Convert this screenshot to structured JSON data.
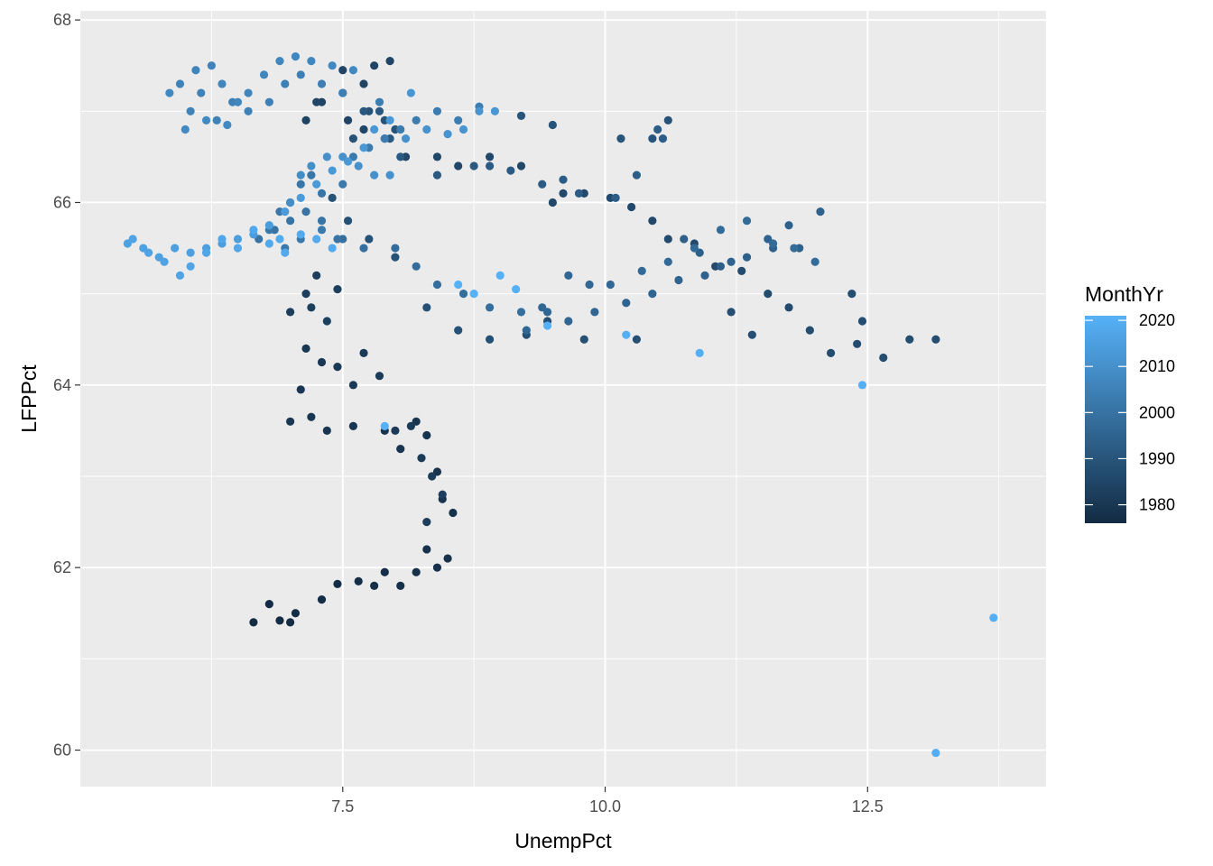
{
  "chart_data": {
    "type": "scatter",
    "xlabel": "UnempPct",
    "ylabel": "LFPPct",
    "xlim": [
      5.0,
      14.2
    ],
    "ylim": [
      59.6,
      68.1
    ],
    "x_ticks": [
      7.5,
      10.0,
      12.5
    ],
    "x_tick_labels": [
      "7.5",
      "10.0",
      "12.5"
    ],
    "y_ticks": [
      60,
      62,
      64,
      66,
      68
    ],
    "y_tick_labels": [
      "60",
      "62",
      "64",
      "66",
      "68"
    ],
    "grid": true,
    "panel_background": "#ebebeb",
    "legend": {
      "title": "MonthYr",
      "placement": "right",
      "range": [
        1976,
        2021
      ],
      "ticks": [
        1980,
        1990,
        2000,
        2010,
        2020
      ],
      "tick_labels": [
        "1980",
        "1990",
        "2000",
        "2010",
        "2020"
      ],
      "color_low": "#132b43",
      "color_high": "#56b1f7"
    },
    "segments": [
      {
        "year_start": 1976,
        "year_end": 1983,
        "points": [
          [
            6.65,
            61.4
          ],
          [
            6.8,
            61.6
          ],
          [
            6.9,
            61.42
          ],
          [
            7.0,
            61.4
          ],
          [
            7.05,
            61.5
          ],
          [
            7.3,
            61.65
          ],
          [
            7.45,
            61.82
          ],
          [
            7.65,
            61.85
          ],
          [
            7.8,
            61.8
          ],
          [
            7.9,
            61.95
          ],
          [
            8.05,
            61.8
          ],
          [
            8.2,
            61.95
          ],
          [
            8.3,
            62.2
          ],
          [
            8.4,
            62.0
          ],
          [
            8.5,
            62.1
          ],
          [
            8.55,
            62.6
          ],
          [
            8.45,
            62.75
          ],
          [
            8.4,
            63.05
          ],
          [
            8.3,
            63.45
          ],
          [
            8.2,
            63.6
          ],
          [
            8.05,
            63.3
          ],
          [
            7.9,
            63.5
          ],
          [
            7.6,
            63.55
          ],
          [
            7.35,
            63.5
          ],
          [
            7.2,
            63.65
          ],
          [
            7.0,
            63.6
          ],
          [
            7.1,
            63.95
          ],
          [
            7.15,
            64.4
          ],
          [
            7.3,
            64.25
          ],
          [
            7.45,
            64.2
          ],
          [
            7.6,
            64.0
          ],
          [
            7.7,
            64.35
          ],
          [
            7.85,
            64.1
          ],
          [
            8.0,
            63.5
          ],
          [
            8.15,
            63.55
          ],
          [
            8.25,
            63.2
          ],
          [
            8.35,
            63.0
          ],
          [
            8.45,
            62.8
          ],
          [
            8.3,
            62.5
          ],
          [
            7.0,
            64.8
          ],
          [
            7.15,
            65.0
          ],
          [
            7.25,
            65.2
          ],
          [
            7.45,
            65.05
          ],
          [
            7.35,
            64.7
          ],
          [
            7.2,
            64.85
          ]
        ]
      },
      {
        "year_start": 1984,
        "year_end": 1990,
        "points": [
          [
            7.15,
            66.9
          ],
          [
            7.3,
            67.1
          ],
          [
            7.5,
            67.2
          ],
          [
            7.7,
            67.3
          ],
          [
            7.95,
            67.55
          ],
          [
            7.8,
            67.5
          ],
          [
            7.5,
            67.45
          ],
          [
            7.25,
            67.1
          ],
          [
            7.55,
            66.9
          ],
          [
            7.7,
            66.8
          ],
          [
            7.9,
            66.7
          ],
          [
            8.1,
            66.5
          ],
          [
            8.4,
            66.5
          ],
          [
            8.6,
            66.4
          ],
          [
            8.9,
            66.5
          ],
          [
            9.2,
            66.4
          ],
          [
            9.5,
            66.0
          ],
          [
            9.6,
            66.1
          ],
          [
            9.8,
            66.1
          ],
          [
            10.05,
            66.05
          ],
          [
            10.25,
            65.95
          ],
          [
            10.45,
            65.8
          ],
          [
            10.6,
            65.6
          ],
          [
            10.85,
            65.55
          ],
          [
            11.05,
            65.3
          ],
          [
            11.3,
            65.25
          ],
          [
            11.55,
            65.0
          ],
          [
            11.75,
            64.85
          ],
          [
            11.95,
            64.6
          ],
          [
            12.15,
            64.35
          ],
          [
            12.4,
            64.45
          ],
          [
            12.65,
            64.3
          ],
          [
            12.9,
            64.5
          ],
          [
            13.15,
            64.5
          ],
          [
            12.45,
            64.7
          ],
          [
            12.35,
            65.0
          ],
          [
            11.2,
            64.8
          ],
          [
            11.4,
            64.55
          ],
          [
            10.3,
            64.5
          ],
          [
            9.8,
            64.5
          ],
          [
            9.45,
            64.7
          ],
          [
            9.25,
            64.55
          ],
          [
            8.9,
            64.5
          ],
          [
            8.6,
            64.6
          ],
          [
            8.3,
            64.85
          ],
          [
            8.0,
            65.4
          ],
          [
            7.75,
            65.6
          ],
          [
            7.55,
            65.8
          ],
          [
            7.4,
            66.05
          ],
          [
            7.6,
            66.7
          ],
          [
            7.75,
            67.0
          ],
          [
            7.9,
            66.9
          ],
          [
            8.0,
            66.8
          ],
          [
            10.6,
            66.9
          ],
          [
            10.45,
            66.7
          ],
          [
            10.15,
            66.7
          ],
          [
            9.5,
            66.85
          ],
          [
            9.2,
            66.95
          ]
        ]
      },
      {
        "year_start": 1991,
        "year_end": 1999,
        "points": [
          [
            7.7,
            67.0
          ],
          [
            7.85,
            67.0
          ],
          [
            7.95,
            66.7
          ],
          [
            8.05,
            66.5
          ],
          [
            8.4,
            66.3
          ],
          [
            8.75,
            66.4
          ],
          [
            8.9,
            66.4
          ],
          [
            9.1,
            66.35
          ],
          [
            9.4,
            66.2
          ],
          [
            9.6,
            66.25
          ],
          [
            9.75,
            66.1
          ],
          [
            10.1,
            66.05
          ],
          [
            10.3,
            66.3
          ],
          [
            10.5,
            66.8
          ],
          [
            10.55,
            66.7
          ],
          [
            10.75,
            65.6
          ],
          [
            10.9,
            65.45
          ],
          [
            11.1,
            65.3
          ],
          [
            11.35,
            65.4
          ],
          [
            11.6,
            65.5
          ],
          [
            11.85,
            65.5
          ],
          [
            12.05,
            65.9
          ],
          [
            11.75,
            65.75
          ],
          [
            11.55,
            65.6
          ],
          [
            11.2,
            65.35
          ],
          [
            10.95,
            65.2
          ],
          [
            10.7,
            65.15
          ],
          [
            10.45,
            65.0
          ],
          [
            10.2,
            64.9
          ],
          [
            9.9,
            64.8
          ],
          [
            9.65,
            64.7
          ],
          [
            9.45,
            64.8
          ],
          [
            9.25,
            64.6
          ],
          [
            9.4,
            64.85
          ],
          [
            9.65,
            65.2
          ],
          [
            9.85,
            65.1
          ],
          [
            10.05,
            65.1
          ],
          [
            10.35,
            65.25
          ],
          [
            10.6,
            65.35
          ],
          [
            10.85,
            65.5
          ],
          [
            11.1,
            65.7
          ],
          [
            11.35,
            65.8
          ],
          [
            11.6,
            65.55
          ],
          [
            11.8,
            65.5
          ],
          [
            12.0,
            65.35
          ],
          [
            8.0,
            65.5
          ],
          [
            8.2,
            65.3
          ],
          [
            8.4,
            65.1
          ],
          [
            8.65,
            65.0
          ],
          [
            8.9,
            64.85
          ],
          [
            9.2,
            64.8
          ],
          [
            7.5,
            65.6
          ],
          [
            7.7,
            65.5
          ]
        ]
      },
      {
        "year_start": 2000,
        "year_end": 2008,
        "points": [
          [
            6.7,
            65.6
          ],
          [
            6.85,
            65.7
          ],
          [
            7.0,
            65.8
          ],
          [
            7.15,
            65.9
          ],
          [
            7.3,
            65.8
          ],
          [
            7.45,
            65.6
          ],
          [
            7.3,
            66.1
          ],
          [
            7.2,
            66.3
          ],
          [
            7.1,
            66.2
          ],
          [
            7.0,
            66.0
          ],
          [
            6.9,
            65.9
          ],
          [
            6.8,
            65.7
          ],
          [
            6.95,
            65.5
          ],
          [
            7.1,
            65.6
          ],
          [
            7.3,
            65.7
          ],
          [
            7.5,
            66.2
          ],
          [
            7.6,
            66.5
          ],
          [
            7.75,
            66.6
          ],
          [
            7.9,
            66.7
          ],
          [
            8.05,
            66.8
          ],
          [
            8.2,
            66.9
          ],
          [
            8.4,
            67.0
          ],
          [
            8.6,
            66.9
          ],
          [
            8.8,
            67.05
          ],
          [
            7.85,
            67.1
          ],
          [
            7.5,
            67.2
          ],
          [
            7.3,
            67.3
          ],
          [
            7.1,
            67.4
          ],
          [
            6.95,
            67.3
          ],
          [
            6.8,
            67.1
          ],
          [
            6.6,
            67.0
          ],
          [
            6.45,
            67.1
          ],
          [
            6.3,
            66.9
          ],
          [
            6.15,
            67.2
          ],
          [
            6.05,
            67.0
          ],
          [
            5.95,
            67.3
          ],
          [
            6.1,
            67.45
          ],
          [
            6.25,
            67.5
          ],
          [
            6.35,
            67.3
          ],
          [
            6.5,
            67.1
          ],
          [
            6.6,
            67.2
          ],
          [
            6.75,
            67.4
          ],
          [
            6.9,
            67.55
          ],
          [
            7.05,
            67.6
          ],
          [
            7.2,
            67.55
          ],
          [
            7.4,
            67.5
          ],
          [
            7.6,
            67.45
          ],
          [
            5.85,
            67.2
          ],
          [
            6.0,
            66.8
          ],
          [
            6.2,
            66.9
          ],
          [
            6.4,
            66.85
          ]
        ]
      },
      {
        "year_start": 2009,
        "year_end": 2019,
        "points": [
          [
            7.0,
            66.0
          ],
          [
            7.1,
            66.3
          ],
          [
            7.2,
            66.4
          ],
          [
            7.35,
            66.5
          ],
          [
            7.5,
            66.5
          ],
          [
            7.65,
            66.4
          ],
          [
            7.8,
            66.3
          ],
          [
            7.95,
            66.3
          ],
          [
            8.1,
            66.7
          ],
          [
            8.3,
            66.8
          ],
          [
            8.5,
            66.75
          ],
          [
            8.65,
            66.8
          ],
          [
            8.8,
            67.0
          ],
          [
            8.95,
            67.0
          ],
          [
            8.15,
            67.2
          ],
          [
            7.95,
            66.9
          ],
          [
            7.8,
            66.8
          ],
          [
            7.7,
            66.6
          ],
          [
            7.55,
            66.45
          ],
          [
            7.4,
            66.35
          ],
          [
            7.25,
            66.2
          ],
          [
            7.1,
            66.05
          ],
          [
            6.95,
            65.9
          ],
          [
            6.8,
            65.75
          ],
          [
            6.65,
            65.65
          ],
          [
            6.5,
            65.6
          ],
          [
            6.35,
            65.55
          ],
          [
            6.2,
            65.5
          ],
          [
            6.05,
            65.45
          ],
          [
            5.9,
            65.5
          ],
          [
            5.75,
            65.4
          ],
          [
            5.6,
            65.5
          ],
          [
            5.45,
            65.55
          ],
          [
            5.5,
            65.6
          ],
          [
            5.65,
            65.45
          ],
          [
            5.8,
            65.35
          ],
          [
            5.95,
            65.2
          ],
          [
            6.05,
            65.3
          ],
          [
            6.2,
            65.45
          ],
          [
            6.35,
            65.6
          ],
          [
            6.5,
            65.5
          ],
          [
            6.65,
            65.7
          ],
          [
            6.8,
            65.55
          ],
          [
            6.95,
            65.45
          ],
          [
            7.1,
            65.65
          ],
          [
            7.25,
            65.6
          ],
          [
            7.4,
            65.5
          ],
          [
            6.9,
            65.6
          ]
        ]
      },
      {
        "year_start": 2020,
        "year_end": 2021,
        "points": [
          [
            13.7,
            61.45
          ],
          [
            13.15,
            59.97
          ],
          [
            12.45,
            64.0
          ],
          [
            10.9,
            64.35
          ],
          [
            10.2,
            64.55
          ],
          [
            9.45,
            64.65
          ],
          [
            9.15,
            65.05
          ],
          [
            9.0,
            65.2
          ],
          [
            8.75,
            65.0
          ],
          [
            8.6,
            65.1
          ],
          [
            7.9,
            63.55
          ]
        ]
      }
    ]
  }
}
